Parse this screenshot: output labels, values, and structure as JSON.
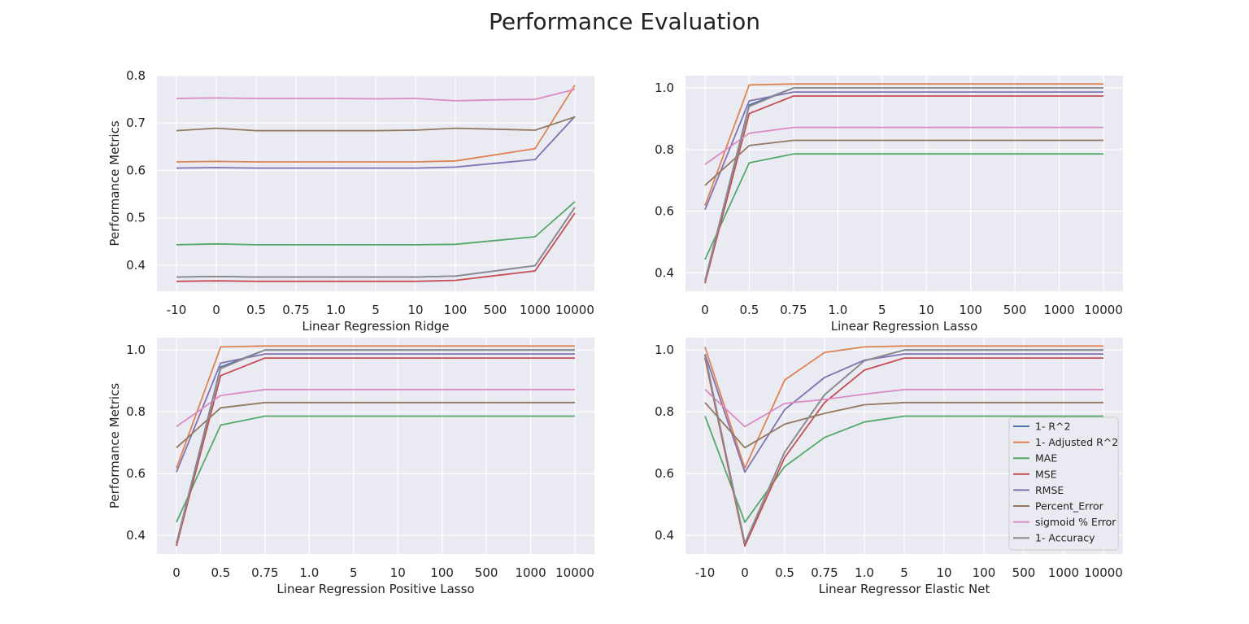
{
  "figure": {
    "title": "Performance Evaluation"
  },
  "legend": {
    "entries": [
      "1- R^2",
      "1- Adjusted R^2",
      "MAE",
      "MSE",
      "RMSE",
      "Percent_Error",
      "sigmoid % Error",
      "1- Accuracy"
    ],
    "placement": "center-right of bottom-right subplot"
  },
  "colors": {
    "plot_background": "#eaeaf2",
    "grid": "#ffffff",
    "series": [
      "#4c72b0",
      "#dd8452",
      "#55a868",
      "#c44e52",
      "#8172b3",
      "#937860",
      "#da8bc3",
      "#8c8c8c"
    ]
  },
  "chart_data": [
    {
      "type": "line",
      "xlabel": "Linear Regression Ridge",
      "ylabel": "Performance Metrics",
      "categories": [
        "-10",
        "0",
        "0.5",
        "0.75",
        "1.0",
        "5",
        "10",
        "100",
        "500",
        "1000",
        "10000"
      ],
      "ylim": [
        0.345,
        0.8
      ],
      "yticks": [
        "0.4",
        "0.5",
        "0.6",
        "0.7",
        "0.8"
      ],
      "grid": true,
      "series": [
        {
          "name": "1- R^2",
          "values": [
            0.375,
            0.376,
            0.375,
            0.375,
            0.375,
            0.375,
            0.375,
            0.377,
            0.388,
            0.399,
            0.522
          ]
        },
        {
          "name": "1- Adjusted R^2",
          "values": [
            0.618,
            0.619,
            0.618,
            0.618,
            0.618,
            0.618,
            0.618,
            0.62,
            0.633,
            0.646,
            0.78
          ]
        },
        {
          "name": "MAE",
          "values": [
            0.443,
            0.445,
            0.443,
            0.443,
            0.443,
            0.443,
            0.443,
            0.444,
            0.452,
            0.46,
            0.534
          ]
        },
        {
          "name": "MSE",
          "values": [
            0.366,
            0.367,
            0.366,
            0.366,
            0.366,
            0.366,
            0.366,
            0.368,
            0.378,
            0.388,
            0.51
          ]
        },
        {
          "name": "RMSE",
          "values": [
            0.605,
            0.606,
            0.605,
            0.605,
            0.605,
            0.605,
            0.605,
            0.607,
            0.615,
            0.623,
            0.714
          ]
        },
        {
          "name": "Percent_Error",
          "values": [
            0.684,
            0.689,
            0.684,
            0.684,
            0.684,
            0.684,
            0.685,
            0.689,
            0.687,
            0.685,
            0.713
          ]
        },
        {
          "name": "sigmoid % Error",
          "values": [
            0.752,
            0.753,
            0.752,
            0.752,
            0.752,
            0.751,
            0.752,
            0.747,
            0.749,
            0.75,
            0.771
          ]
        },
        {
          "name": "1- Accuracy",
          "values": [
            0.375,
            0.376,
            0.375,
            0.375,
            0.375,
            0.375,
            0.375,
            0.377,
            0.388,
            0.399,
            0.522
          ]
        }
      ]
    },
    {
      "type": "line",
      "xlabel": "Linear Regression Lasso",
      "ylabel": "",
      "categories": [
        "0",
        "0.5",
        "0.75",
        "1.0",
        "5",
        "10",
        "100",
        "500",
        "1000",
        "10000"
      ],
      "ylim": [
        0.34,
        1.04
      ],
      "yticks": [
        "0.4",
        "0.6",
        "0.8",
        "1.0"
      ],
      "grid": true,
      "series": [
        {
          "name": "1- R^2",
          "values": [
            0.375,
            0.945,
            1.0,
            1.0,
            1.0,
            1.0,
            1.0,
            1.0,
            1.0,
            1.0
          ]
        },
        {
          "name": "1- Adjusted R^2",
          "values": [
            0.618,
            1.01,
            1.013,
            1.013,
            1.013,
            1.013,
            1.013,
            1.013,
            1.013,
            1.013
          ]
        },
        {
          "name": "MAE",
          "values": [
            0.443,
            0.757,
            0.786,
            0.786,
            0.786,
            0.786,
            0.786,
            0.786,
            0.786,
            0.786
          ]
        },
        {
          "name": "MSE",
          "values": [
            0.366,
            0.917,
            0.974,
            0.974,
            0.974,
            0.974,
            0.974,
            0.974,
            0.974,
            0.974
          ]
        },
        {
          "name": "RMSE",
          "values": [
            0.605,
            0.958,
            0.987,
            0.987,
            0.987,
            0.987,
            0.987,
            0.987,
            0.987,
            0.987
          ]
        },
        {
          "name": "Percent_Error",
          "values": [
            0.684,
            0.813,
            0.83,
            0.83,
            0.83,
            0.83,
            0.83,
            0.83,
            0.83,
            0.83
          ]
        },
        {
          "name": "sigmoid % Error",
          "values": [
            0.752,
            0.853,
            0.872,
            0.872,
            0.872,
            0.872,
            0.872,
            0.872,
            0.872,
            0.872
          ]
        },
        {
          "name": "1- Accuracy",
          "values": [
            0.375,
            0.94,
            1.0,
            1.0,
            1.0,
            1.0,
            1.0,
            1.0,
            1.0,
            1.0
          ]
        }
      ]
    },
    {
      "type": "line",
      "xlabel": "Linear Regression Positive Lasso",
      "ylabel": "Performance Metrics",
      "categories": [
        "0",
        "0.5",
        "0.75",
        "1.0",
        "5",
        "10",
        "100",
        "500",
        "1000",
        "10000"
      ],
      "ylim": [
        0.34,
        1.04
      ],
      "yticks": [
        "0.4",
        "0.6",
        "0.8",
        "1.0"
      ],
      "grid": true,
      "series": [
        {
          "name": "1- R^2",
          "values": [
            0.375,
            0.945,
            1.0,
            1.0,
            1.0,
            1.0,
            1.0,
            1.0,
            1.0,
            1.0
          ]
        },
        {
          "name": "1- Adjusted R^2",
          "values": [
            0.618,
            1.01,
            1.013,
            1.013,
            1.013,
            1.013,
            1.013,
            1.013,
            1.013,
            1.013
          ]
        },
        {
          "name": "MAE",
          "values": [
            0.443,
            0.757,
            0.786,
            0.786,
            0.786,
            0.786,
            0.786,
            0.786,
            0.786,
            0.786
          ]
        },
        {
          "name": "MSE",
          "values": [
            0.366,
            0.917,
            0.974,
            0.974,
            0.974,
            0.974,
            0.974,
            0.974,
            0.974,
            0.974
          ]
        },
        {
          "name": "RMSE",
          "values": [
            0.605,
            0.958,
            0.987,
            0.987,
            0.987,
            0.987,
            0.987,
            0.987,
            0.987,
            0.987
          ]
        },
        {
          "name": "Percent_Error",
          "values": [
            0.684,
            0.813,
            0.83,
            0.83,
            0.83,
            0.83,
            0.83,
            0.83,
            0.83,
            0.83
          ]
        },
        {
          "name": "sigmoid % Error",
          "values": [
            0.752,
            0.853,
            0.872,
            0.872,
            0.872,
            0.872,
            0.872,
            0.872,
            0.872,
            0.872
          ]
        },
        {
          "name": "1- Accuracy",
          "values": [
            0.375,
            0.94,
            1.0,
            1.0,
            1.0,
            1.0,
            1.0,
            1.0,
            1.0,
            1.0
          ]
        }
      ]
    },
    {
      "type": "line",
      "xlabel": "Linear Regressor Elastic Net",
      "ylabel": "",
      "categories": [
        "-10",
        "0",
        "0.5",
        "0.75",
        "1.0",
        "5",
        "10",
        "100",
        "500",
        "1000",
        "10000"
      ],
      "ylim": [
        0.34,
        1.04
      ],
      "yticks": [
        "0.4",
        "0.6",
        "0.8",
        "1.0"
      ],
      "grid": true,
      "series": [
        {
          "name": "1- R^2",
          "values": [
            0.983,
            0.375,
            0.67,
            0.855,
            0.965,
            1.0,
            1.0,
            1.0,
            1.0,
            1.0,
            1.0
          ]
        },
        {
          "name": "1- Adjusted R^2",
          "values": [
            1.01,
            0.618,
            0.903,
            0.992,
            1.01,
            1.013,
            1.013,
            1.013,
            1.013,
            1.013,
            1.013
          ]
        },
        {
          "name": "MAE",
          "values": [
            0.786,
            0.443,
            0.623,
            0.717,
            0.767,
            0.786,
            0.786,
            0.786,
            0.786,
            0.786,
            0.786
          ]
        },
        {
          "name": "MSE",
          "values": [
            0.974,
            0.366,
            0.652,
            0.83,
            0.935,
            0.974,
            0.974,
            0.974,
            0.974,
            0.974,
            0.974
          ]
        },
        {
          "name": "RMSE",
          "values": [
            0.987,
            0.605,
            0.807,
            0.911,
            0.967,
            0.987,
            0.987,
            0.987,
            0.987,
            0.987,
            0.987
          ]
        },
        {
          "name": "Percent_Error",
          "values": [
            0.83,
            0.684,
            0.76,
            0.795,
            0.823,
            0.83,
            0.83,
            0.83,
            0.83,
            0.83,
            0.83
          ]
        },
        {
          "name": "sigmoid % Error",
          "values": [
            0.872,
            0.752,
            0.827,
            0.84,
            0.857,
            0.872,
            0.872,
            0.872,
            0.872,
            0.872,
            0.872
          ]
        },
        {
          "name": "1- Accuracy",
          "values": [
            0.983,
            0.375,
            0.67,
            0.855,
            0.965,
            1.0,
            1.0,
            1.0,
            1.0,
            1.0,
            1.0
          ]
        }
      ]
    }
  ]
}
